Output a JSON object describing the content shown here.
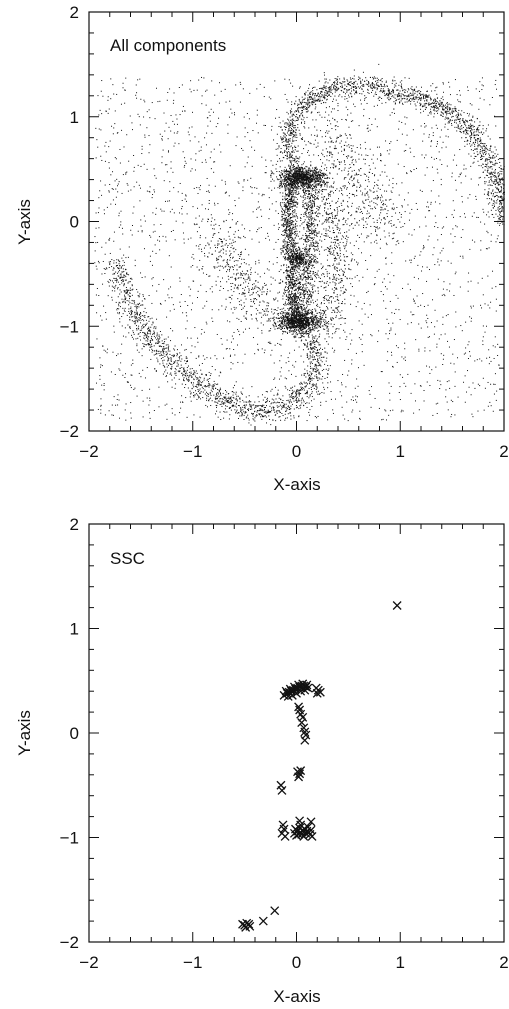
{
  "chart_data": [
    {
      "type": "scatter",
      "panel_label": "All components",
      "xlabel": "X-axis",
      "ylabel": "Y-axis",
      "xlim": [
        -2,
        2
      ],
      "ylim": [
        -2,
        2
      ],
      "xticks": [
        -2,
        -1,
        0,
        1,
        2
      ],
      "yticks": [
        -2,
        -1,
        0,
        1,
        2
      ],
      "xtick_labels": [
        "−2",
        "−1",
        "0",
        "1",
        "2"
      ],
      "ytick_labels": [
        "−2",
        "−1",
        "0",
        "1",
        "2"
      ],
      "minor_tick_step": 0.2,
      "grid": false,
      "marker": "dot",
      "color": "#111111",
      "structures": [
        {
          "kind": "arm",
          "points": [
            [
              0.0,
              0.42
            ],
            [
              -0.1,
              0.7
            ],
            [
              -0.05,
              0.95
            ],
            [
              0.1,
              1.15
            ],
            [
              0.35,
              1.28
            ],
            [
              0.7,
              1.32
            ],
            [
              0.95,
              1.22
            ],
            [
              1.2,
              1.2
            ],
            [
              1.45,
              1.05
            ],
            [
              1.7,
              0.85
            ],
            [
              1.85,
              0.6
            ],
            [
              1.95,
              0.3
            ],
            [
              1.98,
              0.0
            ]
          ],
          "width": 0.05,
          "count": 1700
        },
        {
          "kind": "arm",
          "points": [
            [
              0.0,
              -0.95
            ],
            [
              0.15,
              -1.15
            ],
            [
              0.2,
              -1.4
            ],
            [
              0.1,
              -1.6
            ],
            [
              -0.1,
              -1.75
            ],
            [
              -0.4,
              -1.82
            ],
            [
              -0.65,
              -1.72
            ],
            [
              -0.95,
              -1.55
            ],
            [
              -1.25,
              -1.3
            ],
            [
              -1.5,
              -1.0
            ],
            [
              -1.65,
              -0.7
            ],
            [
              -1.75,
              -0.4
            ]
          ],
          "width": 0.06,
          "count": 1500
        },
        {
          "kind": "arm",
          "points": [
            [
              -0.05,
              0.42
            ],
            [
              -0.08,
              0.1
            ],
            [
              -0.06,
              -0.3
            ],
            [
              -0.05,
              -0.6
            ],
            [
              -0.03,
              -0.95
            ]
          ],
          "width": 0.04,
          "count": 1100
        },
        {
          "kind": "arm",
          "points": [
            [
              0.1,
              0.35
            ],
            [
              0.15,
              0.0
            ],
            [
              0.12,
              -0.35
            ],
            [
              0.08,
              -0.7
            ],
            [
              0.05,
              -0.95
            ]
          ],
          "width": 0.05,
          "count": 700
        },
        {
          "kind": "arm",
          "points": [
            [
              0.22,
              0.45
            ],
            [
              0.35,
              0.1
            ],
            [
              0.4,
              -0.3
            ],
            [
              0.35,
              -0.7
            ],
            [
              0.3,
              -1.0
            ]
          ],
          "width": 0.08,
          "count": 500
        },
        {
          "kind": "arm",
          "points": [
            [
              0.25,
              0.9
            ],
            [
              0.5,
              0.6
            ],
            [
              0.7,
              0.2
            ],
            [
              0.9,
              -0.1
            ]
          ],
          "width": 0.12,
          "count": 350
        },
        {
          "kind": "arm",
          "points": [
            [
              -0.3,
              -0.9
            ],
            [
              -0.5,
              -0.6
            ],
            [
              -0.7,
              -0.3
            ],
            [
              -0.8,
              0.0
            ]
          ],
          "width": 0.12,
          "count": 350
        },
        {
          "kind": "blob",
          "center": [
            0.05,
            0.42
          ],
          "sx": 0.11,
          "sy": 0.05,
          "count": 900
        },
        {
          "kind": "blob",
          "center": [
            0.02,
            -0.95
          ],
          "sx": 0.11,
          "sy": 0.05,
          "count": 900
        },
        {
          "kind": "blob",
          "center": [
            0.02,
            -0.35
          ],
          "sx": 0.04,
          "sy": 0.04,
          "count": 250
        },
        {
          "kind": "blob",
          "center": [
            0.0,
            0.0
          ],
          "sx": 0.9,
          "sy": 0.9,
          "count": 2200,
          "box": [
            -1.95,
            1.95,
            -1.9,
            1.38
          ]
        }
      ]
    },
    {
      "type": "scatter",
      "panel_label": "SSC",
      "xlabel": "X-axis",
      "ylabel": "Y-axis",
      "xlim": [
        -2,
        2
      ],
      "ylim": [
        -2,
        2
      ],
      "xticks": [
        -2,
        -1,
        0,
        1,
        2
      ],
      "yticks": [
        -2,
        -1,
        0,
        1,
        2
      ],
      "xtick_labels": [
        "−2",
        "−1",
        "0",
        "1",
        "2"
      ],
      "ytick_labels": [
        "−2",
        "−1",
        "0",
        "1",
        "2"
      ],
      "minor_tick_step": 0.2,
      "grid": false,
      "marker": "x",
      "color": "#111111",
      "points": [
        [
          -0.12,
          0.36
        ],
        [
          -0.09,
          0.38
        ],
        [
          -0.07,
          0.39
        ],
        [
          -0.05,
          0.4
        ],
        [
          -0.03,
          0.41
        ],
        [
          -0.01,
          0.42
        ],
        [
          0.01,
          0.43
        ],
        [
          0.03,
          0.44
        ],
        [
          0.05,
          0.45
        ],
        [
          0.07,
          0.45
        ],
        [
          0.09,
          0.44
        ],
        [
          0.11,
          0.43
        ],
        [
          -0.1,
          0.4
        ],
        [
          -0.06,
          0.42
        ],
        [
          -0.02,
          0.44
        ],
        [
          0.02,
          0.46
        ],
        [
          0.06,
          0.47
        ],
        [
          0.1,
          0.46
        ],
        [
          -0.08,
          0.35
        ],
        [
          -0.04,
          0.36
        ],
        [
          0.0,
          0.38
        ],
        [
          0.04,
          0.4
        ],
        [
          0.08,
          0.41
        ],
        [
          0.19,
          0.43
        ],
        [
          0.21,
          0.41
        ],
        [
          0.23,
          0.39
        ],
        [
          0.2,
          0.38
        ],
        [
          0.02,
          0.25
        ],
        [
          0.03,
          0.22
        ],
        [
          0.04,
          0.18
        ],
        [
          0.06,
          0.15
        ],
        [
          0.05,
          0.1
        ],
        [
          0.07,
          0.05
        ],
        [
          0.08,
          0.01
        ],
        [
          0.09,
          -0.02
        ],
        [
          0.08,
          -0.07
        ],
        [
          0.01,
          -0.37
        ],
        [
          0.03,
          -0.39
        ],
        [
          0.02,
          -0.42
        ],
        [
          0.04,
          -0.36
        ],
        [
          -0.15,
          -0.5
        ],
        [
          -0.14,
          -0.55
        ],
        [
          -0.13,
          -0.88
        ],
        [
          -0.12,
          -0.92
        ],
        [
          -0.14,
          -0.96
        ],
        [
          -0.11,
          -0.99
        ],
        [
          -0.02,
          -0.96
        ],
        [
          0.0,
          -0.98
        ],
        [
          0.02,
          -0.97
        ],
        [
          0.04,
          -0.95
        ],
        [
          0.06,
          -0.93
        ],
        [
          0.08,
          -0.92
        ],
        [
          0.1,
          -0.94
        ],
        [
          0.12,
          -0.95
        ],
        [
          0.14,
          -0.93
        ],
        [
          -0.01,
          -0.92
        ],
        [
          0.01,
          -0.94
        ],
        [
          0.03,
          -0.91
        ],
        [
          0.05,
          -0.97
        ],
        [
          0.07,
          -0.99
        ],
        [
          0.09,
          -0.96
        ],
        [
          0.11,
          -0.9
        ],
        [
          0.13,
          -0.97
        ],
        [
          0.04,
          -0.88
        ],
        [
          0.03,
          -0.84
        ],
        [
          0.14,
          -0.85
        ],
        [
          0.15,
          -0.99
        ],
        [
          0.97,
          1.22
        ],
        [
          -0.21,
          -1.7
        ],
        [
          -0.32,
          -1.8
        ],
        [
          -0.52,
          -1.83
        ],
        [
          -0.5,
          -1.84
        ],
        [
          -0.48,
          -1.82
        ],
        [
          -0.46,
          -1.83
        ],
        [
          -0.45,
          -1.85
        ],
        [
          -0.49,
          -1.86
        ]
      ]
    }
  ]
}
